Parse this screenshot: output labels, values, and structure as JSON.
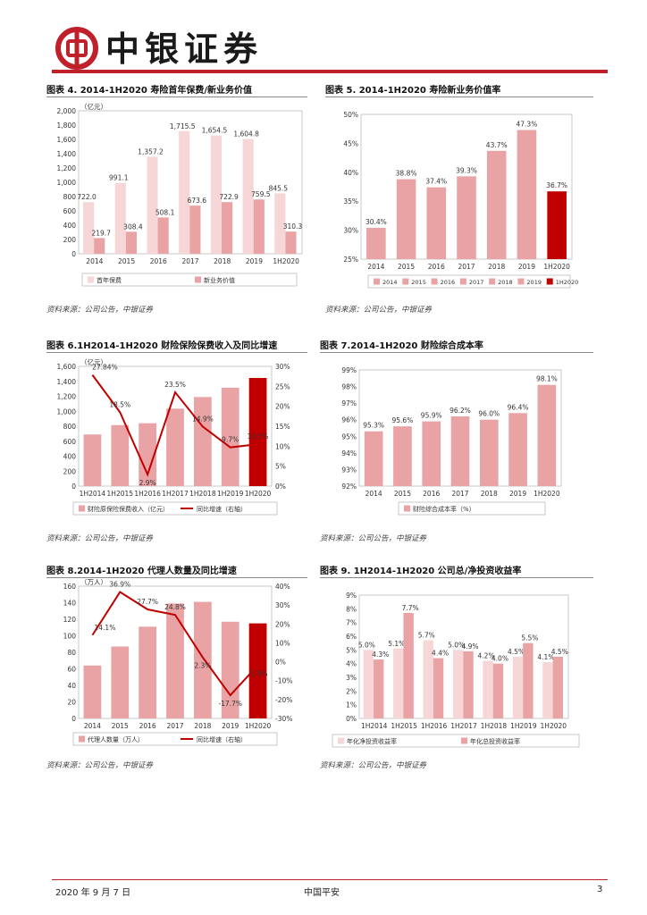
{
  "header": {
    "brand": "中银证券"
  },
  "footer": {
    "date": "2020 年 9 月 7 日",
    "company": "中国平安",
    "page": "3"
  },
  "charts": {
    "c4": {
      "title": "图表 4. 2014-1H2020 寿险首年保费/新业务价值",
      "source": "资料来源：公司公告，中银证券",
      "unit": "（亿元）",
      "legend": [
        "首年保费",
        "新业务价值"
      ]
    },
    "c5": {
      "title": "图表 5. 2014-1H2020 寿险新业务价值率",
      "source": "资料来源：公司公告，中银证券",
      "legend": [
        "2014",
        "2015",
        "2016",
        "2017",
        "2018",
        "2019",
        "1H2020"
      ]
    },
    "c6": {
      "title": "图表 6.1H2014-1H2020 财险保险保费收入及同比增速",
      "source": "资料来源：公司公告，中银证券",
      "unit": "（亿元）",
      "legend": [
        "财险原保险保费收入（亿元）",
        "同比增速（右轴）"
      ]
    },
    "c7": {
      "title": "图表 7.2014-1H2020 财险综合成本率",
      "source": "资料来源：公司公告，中银证券",
      "legend": [
        "财险综合成本率（%）"
      ]
    },
    "c8": {
      "title": "图表 8.2014-1H2020 代理人数量及同比增速",
      "source": "资料来源：公司公告，中银证券",
      "unit": "（万人）",
      "legend": [
        "代理人数量（万人）",
        "同比增速（右轴）"
      ]
    },
    "c9": {
      "title": "图表 9. 1H2014-1H2020 公司总/净投资收益率",
      "source": "资料来源：公司公告，中银证券",
      "legend": [
        "年化净投资收益率",
        "年化总投资收益率"
      ]
    }
  },
  "chart_data": [
    {
      "id": "c4",
      "type": "bar",
      "categories": [
        "2014",
        "2015",
        "2016",
        "2017",
        "2018",
        "2019",
        "1H2020"
      ],
      "series": [
        {
          "name": "首年保费",
          "values": [
            722.0,
            991.1,
            1357.2,
            1715.5,
            1654.5,
            1604.8,
            845.5
          ],
          "labels": [
            "722.0",
            "991.1",
            "1,357.2",
            "1,715.5",
            "1,654.5",
            "1,604.8",
            "845.5"
          ]
        },
        {
          "name": "新业务价值",
          "values": [
            219.7,
            308.4,
            508.1,
            673.6,
            722.9,
            759.5,
            310.3
          ],
          "labels": [
            "219.7",
            "308.4",
            "508.1",
            "673.6",
            "722.9",
            "759.5",
            "310.3"
          ]
        }
      ],
      "ylim": [
        0,
        2000
      ],
      "yticks": [
        "0",
        "200",
        "400",
        "600",
        "800",
        "1,000",
        "1,200",
        "1,400",
        "1,600",
        "1,800",
        "2,000"
      ],
      "colors": [
        "#f6d6d6",
        "#e9a3a5"
      ]
    },
    {
      "id": "c5",
      "type": "bar",
      "categories": [
        "2014",
        "2015",
        "2016",
        "2017",
        "2018",
        "2019",
        "1H2020"
      ],
      "values": [
        30.4,
        38.8,
        37.4,
        39.3,
        43.7,
        47.3,
        36.7
      ],
      "labels": [
        "30.4%",
        "38.8%",
        "37.4%",
        "39.3%",
        "43.7%",
        "47.3%",
        "36.7%"
      ],
      "ylim": [
        25,
        50
      ],
      "yticks": [
        "25%",
        "30%",
        "35%",
        "40%",
        "45%",
        "50%"
      ],
      "colors": [
        "#e9a3a5",
        "#e9a3a5",
        "#e9a3a5",
        "#e9a3a5",
        "#e9a3a5",
        "#e9a3a5",
        "#c00000"
      ]
    },
    {
      "id": "c6",
      "type": "bar",
      "categories": [
        "1H2014",
        "1H2015",
        "1H2016",
        "1H2017",
        "1H2018",
        "1H2019",
        "1H2020"
      ],
      "values": [
        690,
        815,
        840,
        1035,
        1190,
        1315,
        1445
      ],
      "line": {
        "name": "同比增速",
        "values": [
          27.84,
          18.5,
          2.9,
          23.5,
          14.9,
          9.7,
          10.5
        ],
        "labels": [
          "27.84%",
          "18.5%",
          "2.9%",
          "23.5%",
          "14.9%",
          "9.7%",
          "10.5%"
        ]
      },
      "ylim": [
        0,
        1600
      ],
      "y2lim": [
        0,
        30
      ],
      "yticks": [
        "0",
        "200",
        "400",
        "600",
        "800",
        "1,000",
        "1,200",
        "1,400",
        "1,600"
      ],
      "y2ticks": [
        "0%",
        "5%",
        "10%",
        "15%",
        "20%",
        "25%",
        "30%"
      ],
      "colors": [
        "#e9a3a5",
        "#e9a3a5",
        "#e9a3a5",
        "#e9a3a5",
        "#e9a3a5",
        "#e9a3a5",
        "#c00000"
      ],
      "line_color": "#c00000"
    },
    {
      "id": "c7",
      "type": "bar",
      "categories": [
        "2014",
        "2015",
        "2016",
        "2017",
        "2018",
        "2019",
        "1H2020"
      ],
      "values": [
        95.3,
        95.6,
        95.9,
        96.2,
        96.0,
        96.4,
        98.1
      ],
      "labels": [
        "95.3%",
        "95.6%",
        "95.9%",
        "96.2%",
        "96.0%",
        "96.4%",
        "98.1%"
      ],
      "ylim": [
        92,
        99
      ],
      "yticks": [
        "92%",
        "93%",
        "94%",
        "95%",
        "96%",
        "97%",
        "98%",
        "99%"
      ],
      "colors": [
        "#e9a3a5"
      ]
    },
    {
      "id": "c8",
      "type": "bar",
      "categories": [
        "2014",
        "2015",
        "2016",
        "2017",
        "2018",
        "2019",
        "1H2020"
      ],
      "values": [
        64,
        87,
        111,
        139,
        141,
        117,
        115
      ],
      "line": {
        "name": "同比增速",
        "values": [
          14.1,
          36.9,
          27.7,
          24.8,
          2.3,
          -17.7,
          -1.9
        ],
        "labels": [
          "14.1%",
          "36.9%",
          "27.7%",
          "24.8%",
          "2.3%",
          "-17.7%",
          "-1.9%"
        ]
      },
      "ylim": [
        0,
        160
      ],
      "y2lim": [
        -30,
        40
      ],
      "yticks": [
        "0",
        "20",
        "40",
        "60",
        "80",
        "100",
        "120",
        "140",
        "160"
      ],
      "y2ticks": [
        "-30%",
        "-20%",
        "-10%",
        "0%",
        "10%",
        "20%",
        "30%",
        "40%"
      ],
      "colors": [
        "#e9a3a5",
        "#e9a3a5",
        "#e9a3a5",
        "#e9a3a5",
        "#e9a3a5",
        "#e9a3a5",
        "#c00000"
      ],
      "line_color": "#c00000"
    },
    {
      "id": "c9",
      "type": "bar",
      "categories": [
        "1H2014",
        "1H2015",
        "1H2016",
        "1H2017",
        "1H2018",
        "1H2019",
        "1H2020"
      ],
      "series": [
        {
          "name": "年化净投资收益率",
          "values": [
            5.0,
            5.1,
            5.7,
            5.0,
            4.2,
            4.5,
            4.1
          ],
          "labels": [
            "5.0%",
            "5.1%",
            "5.7%",
            "5.0%",
            "4.2%",
            "4.5%",
            "4.1%"
          ]
        },
        {
          "name": "年化总投资收益率",
          "values": [
            4.3,
            7.7,
            4.4,
            4.9,
            4.0,
            5.5,
            4.5
          ],
          "labels": [
            "4.3%",
            "7.7%",
            "4.4%",
            "4.9%",
            "4.0%",
            "5.5%",
            "4.5%"
          ]
        }
      ],
      "ylim": [
        0,
        9
      ],
      "yticks": [
        "0%",
        "1%",
        "2%",
        "3%",
        "4%",
        "5%",
        "6%",
        "7%",
        "8%",
        "9%"
      ],
      "colors": [
        "#f6d6d6",
        "#e9a3a5"
      ]
    }
  ]
}
